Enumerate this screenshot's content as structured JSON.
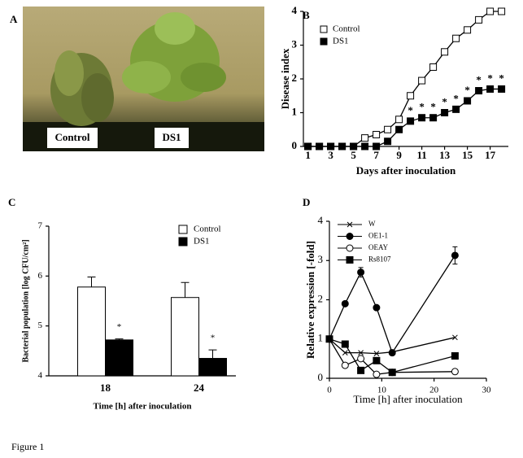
{
  "photo": {
    "panel_label": "A",
    "labels": [
      "Control",
      "DS1"
    ]
  },
  "caption": "Figure 1",
  "chart_data": [
    {
      "type": "line",
      "panel_label": "B",
      "x_label": "Days after inoculation",
      "y_label": "Disease index",
      "x": [
        1,
        2,
        3,
        4,
        5,
        6,
        7,
        8,
        9,
        10,
        11,
        12,
        13,
        14,
        15,
        16,
        17,
        18
      ],
      "xlim": [
        0.6,
        18.6
      ],
      "xticks": [
        1,
        3,
        5,
        7,
        9,
        11,
        13,
        15,
        17
      ],
      "ylim": [
        0,
        4
      ],
      "yticks": [
        0,
        1,
        2,
        3,
        4
      ],
      "legend": "upper left",
      "series": [
        {
          "name": "Control",
          "color": "#000000",
          "marker": "square-open",
          "values": [
            0,
            0,
            0,
            0,
            0,
            0.25,
            0.35,
            0.5,
            0.8,
            1.5,
            1.95,
            2.35,
            2.8,
            3.2,
            3.45,
            3.75,
            4,
            4
          ]
        },
        {
          "name": "DS1",
          "color": "#000000",
          "marker": "square",
          "values": [
            0,
            0,
            0,
            0,
            0,
            0,
            0,
            0.15,
            0.5,
            0.75,
            0.85,
            0.85,
            1.0,
            1.1,
            1.35,
            1.65,
            1.7,
            1.7
          ],
          "significance": [
            null,
            null,
            null,
            null,
            null,
            null,
            null,
            null,
            null,
            "*",
            "*",
            "*",
            "*",
            "*",
            "*",
            "*",
            "*",
            "*"
          ]
        }
      ]
    },
    {
      "type": "bar",
      "panel_label": "C",
      "x_label": "Time [h] after inoculation",
      "y_label": "Bacterial population [log CFU/cm²]",
      "categories": [
        "18",
        "24"
      ],
      "ylim": [
        4,
        7
      ],
      "yticks": [
        4,
        5,
        6,
        7
      ],
      "legend": "upper right",
      "series": [
        {
          "name": "Control",
          "color": "#ffffff",
          "values": [
            5.78,
            5.57
          ],
          "errors": [
            0.2,
            0.3
          ]
        },
        {
          "name": "DS1",
          "color": "#000000",
          "values": [
            4.72,
            4.35
          ],
          "errors": [
            0.02,
            0.17
          ],
          "significance": [
            "*",
            "*"
          ]
        }
      ]
    },
    {
      "type": "line",
      "panel_label": "D",
      "x_label": "Time [h] after inoculation",
      "y_label": "Relative expression [-fold]",
      "x": [
        0,
        3,
        6,
        9,
        12,
        24
      ],
      "xlim": [
        0,
        30
      ],
      "xticks": [
        0,
        10,
        20,
        30
      ],
      "ylim": [
        0,
        4
      ],
      "yticks": [
        0,
        1,
        2,
        3,
        4
      ],
      "legend": "upper left",
      "series": [
        {
          "name": "W",
          "color": "#000000",
          "marker": "x",
          "values": [
            1,
            0.65,
            0.65,
            0.63,
            0.67,
            1.04
          ]
        },
        {
          "name": "OE1-1",
          "color": "#000000",
          "marker": "circle",
          "values": [
            1,
            1.9,
            2.7,
            1.8,
            0.65,
            3.13
          ],
          "errors": [
            0.05,
            0.05,
            0.12,
            0.05,
            0.05,
            0.22
          ]
        },
        {
          "name": "OEAY",
          "color": "#000000",
          "marker": "circle-open",
          "values": [
            1,
            0.33,
            0.5,
            0.1,
            0.15,
            0.17
          ]
        },
        {
          "name": "Rs8107",
          "color": "#000000",
          "marker": "square",
          "values": [
            1,
            0.87,
            0.2,
            0.45,
            0.15,
            0.57
          ]
        }
      ]
    }
  ]
}
